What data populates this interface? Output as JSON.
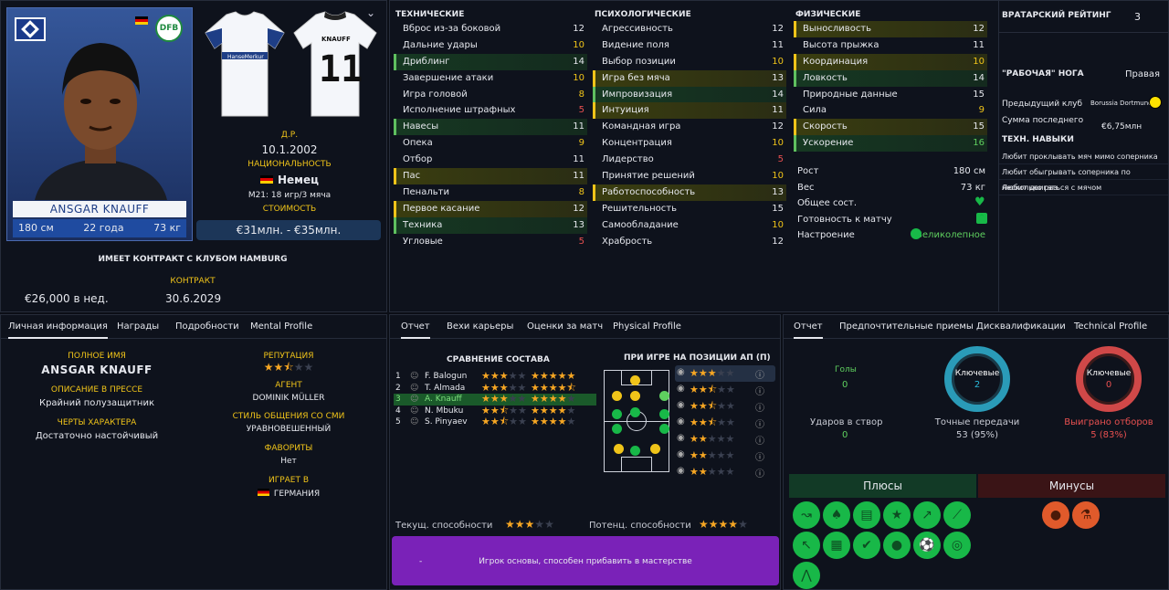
{
  "player": {
    "name": "ANSGAR KNAUFF",
    "height": "180 см",
    "age": "22 года",
    "weight": "73 кг",
    "dob_label": "Д.Р.",
    "dob": "10.1.2002",
    "nat_label": "НАЦИОНАЛЬНОСТЬ",
    "nat": "Немец",
    "u21": "M21: 18 игр/3 мяча",
    "value_label": "СТОИМОСТЬ",
    "value": "€31млн. - €35млн.",
    "contract_title": "ИМЕЕТ КОНТРАКТ С КЛУБОМ HAMBURG",
    "wage": "€26,000 в нед.",
    "contract_label": "КОНТРАКТ",
    "contract_end": "30.6.2029",
    "kit_name": "KNAUFF",
    "kit_number": "11",
    "kit_sponsor": "HanseMerkur"
  },
  "attrs": {
    "technical": {
      "title": "ТЕХНИЧЕСКИЕ",
      "rows": [
        {
          "n": "Вброс из-за боковой",
          "v": "12",
          "c": "#e6e8ee",
          "h": ""
        },
        {
          "n": "Дальние удары",
          "v": "10",
          "c": "#f0c419",
          "h": ""
        },
        {
          "n": "Дриблинг",
          "v": "14",
          "c": "#e6e8ee",
          "h": "g"
        },
        {
          "n": "Завершение атаки",
          "v": "10",
          "c": "#f0c419",
          "h": ""
        },
        {
          "n": "Игра головой",
          "v": "8",
          "c": "#f0c419",
          "h": ""
        },
        {
          "n": "Исполнение штрафных",
          "v": "5",
          "c": "#e85050",
          "h": ""
        },
        {
          "n": "Навесы",
          "v": "11",
          "c": "#e6e8ee",
          "h": "g"
        },
        {
          "n": "Опека",
          "v": "9",
          "c": "#f0c419",
          "h": ""
        },
        {
          "n": "Отбор",
          "v": "11",
          "c": "#e6e8ee",
          "h": ""
        },
        {
          "n": "Пас",
          "v": "11",
          "c": "#e6e8ee",
          "h": "y"
        },
        {
          "n": "Пенальти",
          "v": "8",
          "c": "#f0c419",
          "h": ""
        },
        {
          "n": "Первое касание",
          "v": "12",
          "c": "#e6e8ee",
          "h": "y"
        },
        {
          "n": "Техника",
          "v": "13",
          "c": "#e6e8ee",
          "h": "g"
        },
        {
          "n": "Угловые",
          "v": "5",
          "c": "#e85050",
          "h": ""
        }
      ]
    },
    "mental": {
      "title": "ПСИХОЛОГИЧЕСКИЕ",
      "rows": [
        {
          "n": "Агрессивность",
          "v": "12",
          "c": "#e6e8ee",
          "h": ""
        },
        {
          "n": "Видение поля",
          "v": "11",
          "c": "#e6e8ee",
          "h": ""
        },
        {
          "n": "Выбор позиции",
          "v": "10",
          "c": "#f0c419",
          "h": ""
        },
        {
          "n": "Игра без мяча",
          "v": "13",
          "c": "#e6e8ee",
          "h": "y"
        },
        {
          "n": "Импровизация",
          "v": "14",
          "c": "#e6e8ee",
          "h": "g"
        },
        {
          "n": "Интуиция",
          "v": "11",
          "c": "#e6e8ee",
          "h": "y"
        },
        {
          "n": "Командная игра",
          "v": "12",
          "c": "#e6e8ee",
          "h": ""
        },
        {
          "n": "Концентрация",
          "v": "10",
          "c": "#f0c419",
          "h": ""
        },
        {
          "n": "Лидерство",
          "v": "5",
          "c": "#e85050",
          "h": ""
        },
        {
          "n": "Принятие решений",
          "v": "10",
          "c": "#f0c419",
          "h": ""
        },
        {
          "n": "Работоспособность",
          "v": "13",
          "c": "#e6e8ee",
          "h": "y"
        },
        {
          "n": "Решительность",
          "v": "15",
          "c": "#e6e8ee",
          "h": ""
        },
        {
          "n": "Самообладание",
          "v": "10",
          "c": "#f0c419",
          "h": ""
        },
        {
          "n": "Храбрость",
          "v": "12",
          "c": "#e6e8ee",
          "h": ""
        }
      ]
    },
    "physical": {
      "title": "ФИЗИЧЕСКИЕ",
      "rows": [
        {
          "n": "Выносливость",
          "v": "12",
          "c": "#e6e8ee",
          "h": "y"
        },
        {
          "n": "Высота прыжка",
          "v": "11",
          "c": "#e6e8ee",
          "h": ""
        },
        {
          "n": "Координация",
          "v": "10",
          "c": "#f0c419",
          "h": "y"
        },
        {
          "n": "Ловкость",
          "v": "14",
          "c": "#e6e8ee",
          "h": "g"
        },
        {
          "n": "Природные данные",
          "v": "15",
          "c": "#e6e8ee",
          "h": ""
        },
        {
          "n": "Сила",
          "v": "9",
          "c": "#f0c419",
          "h": ""
        },
        {
          "n": "Скорость",
          "v": "15",
          "c": "#e6e8ee",
          "h": "y"
        },
        {
          "n": "Ускорение",
          "v": "16",
          "c": "#5fd05f",
          "h": "g"
        }
      ]
    }
  },
  "physical_info": [
    {
      "n": "Рост",
      "v": "180 см"
    },
    {
      "n": "Вес",
      "v": "73 кг"
    },
    {
      "n": "Общее сост.",
      "v": ""
    },
    {
      "n": "Готовность к матчу",
      "v": ""
    },
    {
      "n": "Настроение",
      "v": "Великолепное"
    }
  ],
  "side": {
    "gk_label": "ВРАТАРСКИЙ РЕЙТИНГ",
    "gk_value": "3",
    "foot_label": "\"РАБОЧАЯ\" НОГА",
    "foot_value": "Правая",
    "prev_label": "Предыдущий клуб",
    "prev_value": "Borussia Dortmund",
    "fee_label": "Сумма последнего",
    "fee_value": "€6,75млн",
    "tech_title": "ТЕХН. НАВЫКИ",
    "skills": [
      "Любит проклывать мяч мимо соперника",
      "Любит обыгрывать соперника по несколько раз",
      "Любит двигаться с мячом"
    ]
  },
  "info": {
    "tabs": [
      "Личная информация",
      "Награды",
      "Подробности",
      "Mental Profile"
    ],
    "full_name_label": "ПОЛНОЕ ИМЯ",
    "full_name": "ANSGAR KNAUFF",
    "press_label": "ОПИСАНИЕ В ПРЕССЕ",
    "press": "Крайний полузащитник",
    "traits_label": "ЧЕРТЫ ХАРАКТЕРА",
    "traits": "Достаточно настойчивый",
    "rep_label": "РЕПУТАЦИЯ",
    "rep_stars": 2.5,
    "agent_label": "АГЕНТ",
    "agent": "DOMINIK MÜLLER",
    "media_label": "СТИЛЬ ОБЩЕНИЯ СО СМИ",
    "media": "УРАВНОВЕШЕННЫЙ",
    "fav_label": "ФАВОРИТЫ",
    "fav": "Нет",
    "plays_label": "ИГРАЕТ В",
    "plays": "ГЕРМАНИЯ"
  },
  "squad": {
    "tabs": [
      "Отчет",
      "Вехи карьеры",
      "Оценки за матч",
      "Physical Profile"
    ],
    "compare_title": "СРАВНЕНИЕ СОСТАВА",
    "position_title": "ПРИ ИГРЕ НА ПОЗИЦИИ АП (П)",
    "players": [
      {
        "i": "1",
        "n": "F. Balogun",
        "c": 3,
        "p": 5
      },
      {
        "i": "2",
        "n": "T. Almada",
        "c": 3,
        "p": 4.5
      },
      {
        "i": "3",
        "n": "A. Knauff",
        "c": 3,
        "p": 4
      },
      {
        "i": "4",
        "n": "N. Mbuku",
        "c": 2.5,
        "p": 4
      },
      {
        "i": "5",
        "n": "S. Pinyaev",
        "c": 2.5,
        "p": 4
      }
    ],
    "pos_stars": [
      3,
      2.5,
      2.5,
      2.5,
      2,
      2,
      2
    ],
    "cur_label": "Текущ. способности",
    "cur": 3,
    "pot_label": "Потенц. способности",
    "pot": 4,
    "summary_dash": "-",
    "summary": "Игрок основы, способен прибавить в мастерстве"
  },
  "report": {
    "tabs": [
      "Отчет",
      "Предпочтительные приемы",
      "Дисквалификации",
      "Technical Profile"
    ],
    "goals_label": "Голы",
    "goals": "0",
    "shots_label": "Ударов в створ",
    "shots": "0",
    "key_label": "Ключевые",
    "passes_label": "Точные передачи",
    "passes": "53 (95%)",
    "key_passes": "2",
    "tackles_label": "Выиграно отборов",
    "tackles": "5 (83%)",
    "key_tackles": "0",
    "plus": "Плюсы",
    "minus": "Минусы"
  },
  "colors": {
    "accent": "#f0c419",
    "green": "#18b848",
    "purple": "#7a22b8"
  }
}
